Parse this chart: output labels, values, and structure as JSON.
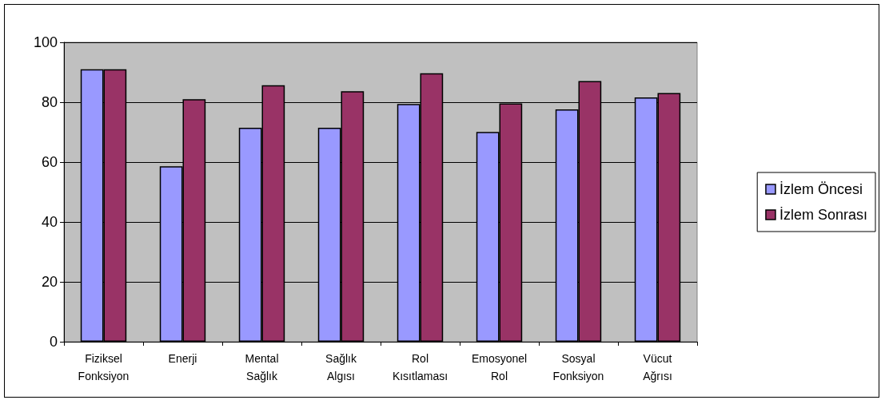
{
  "chart_data": {
    "type": "bar",
    "categories": [
      "Fiziksel\nFonksiyon",
      "Enerji",
      "Mental\nSağlık",
      "Sağlık\nAlgısı",
      "Rol\nKısıtlaması",
      "Emosyonel\nRol",
      "Sosyal\nFonksiyon",
      "Vücut\nAğrısı"
    ],
    "series": [
      {
        "name": "İzlem Öncesi",
        "color": "#9999ff",
        "values": [
          91,
          58.6,
          71.5,
          71.5,
          79.4,
          70.1,
          77.6,
          81.6
        ]
      },
      {
        "name": "İzlem Sonrası",
        "color": "#993366",
        "values": [
          91,
          81,
          85.7,
          83.7,
          89.7,
          79.6,
          87.1,
          83.1
        ]
      }
    ],
    "ylim": [
      0,
      100
    ],
    "yticks": [
      0,
      20,
      40,
      60,
      80,
      100
    ],
    "grid": "y",
    "legend": "right"
  }
}
